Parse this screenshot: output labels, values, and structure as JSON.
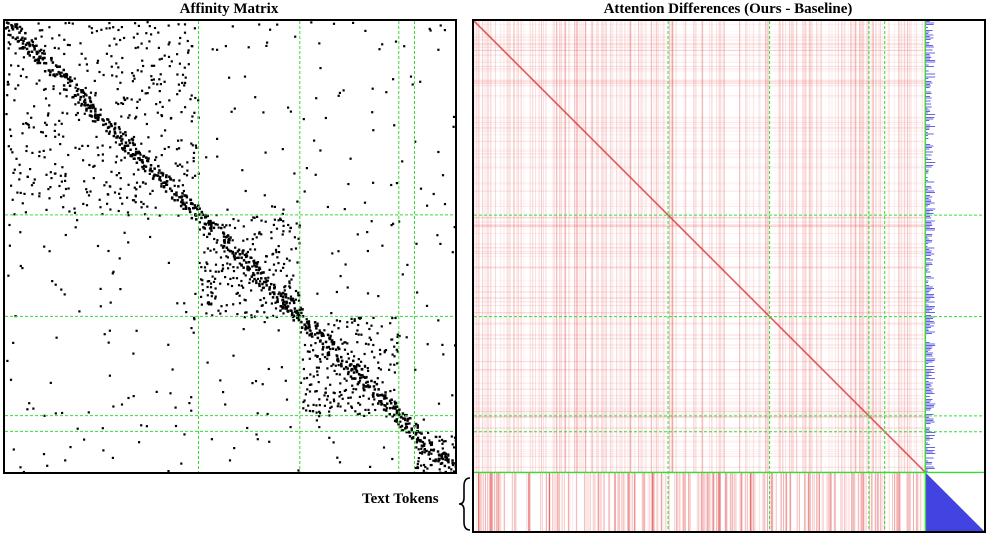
{
  "titles": {
    "left": "Affinity Matrix",
    "right": "Attention Differences (Ours - Baseline)"
  },
  "annotation": {
    "text_tokens": "Text Tokens"
  },
  "colors": {
    "grid_line": "#33dd33",
    "affinity_point": "#000000",
    "positive_diff": "#e03030",
    "negative_diff": "#2222dd",
    "frame": "#000000"
  },
  "chart_data": [
    {
      "type": "heatmap",
      "title": "Affinity Matrix",
      "cluster_boundaries": [
        0.0,
        0.43,
        0.655,
        0.875,
        0.91,
        1.0
      ],
      "cluster_density": [
        0.28,
        0.55,
        0.55,
        1.0,
        0.9
      ],
      "off_block_density": 0.03
    },
    {
      "type": "heatmap",
      "title": "Attention Differences (Ours - Baseline)",
      "cluster_boundaries": [
        0.0,
        0.43,
        0.655,
        0.875,
        0.91,
        1.0
      ],
      "image_token_fraction": 0.885,
      "text_token_region": "bottom rows",
      "positive_color": "red",
      "negative_color": "blue"
    }
  ]
}
